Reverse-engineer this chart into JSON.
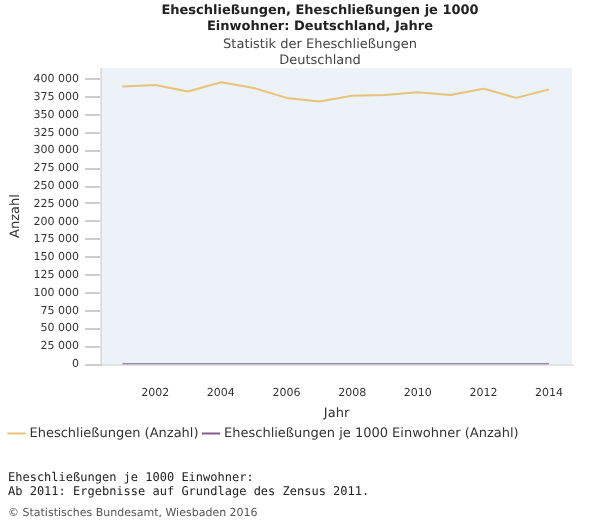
{
  "chart_data": {
    "type": "line",
    "title": "Eheschließungen, Eheschließungen je 1000 Einwohner: Deutschland, Jahre",
    "subtitle": "Statistik der Eheschließungen Deutschland",
    "xlabel": "Jahr",
    "ylabel": "Anzahl",
    "x": [
      2001,
      2002,
      2003,
      2004,
      2005,
      2006,
      2007,
      2008,
      2009,
      2010,
      2011,
      2012,
      2013,
      2014
    ],
    "series": [
      {
        "name": "Eheschließungen (Anzahl)",
        "color": "#e6c27a",
        "values": [
          390000,
          392000,
          383000,
          396000,
          388000,
          374000,
          369000,
          377000,
          378000,
          382000,
          378000,
          387000,
          374000,
          386000
        ]
      },
      {
        "name": "Eheschließungen je 1000 Einwohner (Anzahl)",
        "color": "#7d5f8f",
        "values": [
          5,
          5,
          5,
          5,
          5,
          5,
          5,
          5,
          5,
          5,
          5,
          5,
          5,
          5
        ]
      }
    ],
    "xlim": [
      2000.35,
      2014.7
    ],
    "xticks": [
      2002,
      2004,
      2006,
      2008,
      2010,
      2012,
      2014
    ],
    "ylim": [
      0,
      416000
    ],
    "yticks": [
      {
        "value": 0,
        "label": "0"
      },
      {
        "value": 25000,
        "label": "25 000"
      },
      {
        "value": 50000,
        "label": "50 000"
      },
      {
        "value": 75000,
        "label": "75 000"
      },
      {
        "value": 100000,
        "label": "100 000"
      },
      {
        "value": 125000,
        "label": "125 000"
      },
      {
        "value": 150000,
        "label": "150 000"
      },
      {
        "value": 175000,
        "label": "175 000"
      },
      {
        "value": 200000,
        "label": "200 000"
      },
      {
        "value": 225000,
        "label": "225 000"
      },
      {
        "value": 250000,
        "label": "250 000"
      },
      {
        "value": 275000,
        "label": "275 000"
      },
      {
        "value": 300000,
        "label": "300 000"
      },
      {
        "value": 325000,
        "label": "325 000"
      },
      {
        "value": 350000,
        "label": "350 000"
      },
      {
        "value": 375000,
        "label": "375 000"
      },
      {
        "value": 400000,
        "label": "400 000"
      }
    ],
    "grid": false,
    "legend": "bottom",
    "marker": "none",
    "line_style": "solid",
    "annotations": [
      "Eheschließungen je 1000 Einwohner:",
      "Ab 2011: Ergebnisse auf Grundlage des Zensus 2011.",
      "© Statistisches Bundesamt, Wiesbaden 2016"
    ]
  }
}
